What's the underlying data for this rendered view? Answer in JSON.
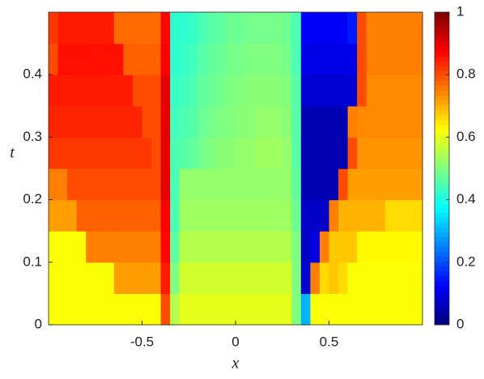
{
  "chart_data": {
    "type": "heatmap",
    "xlabel": "x",
    "ylabel": "t",
    "x": [
      -0.975,
      -0.925,
      -0.875,
      -0.825,
      -0.775,
      -0.725,
      -0.675,
      -0.625,
      -0.575,
      -0.525,
      -0.475,
      -0.425,
      -0.375,
      -0.325,
      -0.275,
      -0.225,
      -0.175,
      -0.125,
      -0.075,
      -0.025,
      0.025,
      0.075,
      0.125,
      0.175,
      0.225,
      0.275,
      0.325,
      0.375,
      0.425,
      0.475,
      0.525,
      0.575,
      0.625,
      0.675,
      0.725,
      0.775,
      0.825,
      0.875,
      0.925,
      0.975
    ],
    "y": [
      0.025,
      0.075,
      0.125,
      0.175,
      0.225,
      0.275,
      0.325,
      0.375,
      0.425,
      0.475
    ],
    "z": [
      [
        0.62,
        0.62,
        0.62,
        0.62,
        0.62,
        0.62,
        0.62,
        0.62,
        0.62,
        0.62,
        0.62,
        0.62,
        0.8,
        0.55,
        0.6,
        0.6,
        0.6,
        0.6,
        0.6,
        0.6,
        0.6,
        0.6,
        0.6,
        0.6,
        0.6,
        0.6,
        0.5,
        0.3,
        0.62,
        0.62,
        0.62,
        0.62,
        0.62,
        0.62,
        0.62,
        0.62,
        0.62,
        0.62,
        0.62,
        0.62
      ],
      [
        0.62,
        0.62,
        0.62,
        0.62,
        0.62,
        0.62,
        0.62,
        0.72,
        0.72,
        0.72,
        0.72,
        0.72,
        0.85,
        0.5,
        0.58,
        0.58,
        0.58,
        0.58,
        0.58,
        0.58,
        0.58,
        0.58,
        0.58,
        0.58,
        0.58,
        0.58,
        0.5,
        0.08,
        0.75,
        0.66,
        0.68,
        0.66,
        0.62,
        0.62,
        0.62,
        0.62,
        0.62,
        0.62,
        0.62,
        0.62
      ],
      [
        0.62,
        0.62,
        0.62,
        0.62,
        0.75,
        0.75,
        0.75,
        0.75,
        0.75,
        0.75,
        0.75,
        0.75,
        0.87,
        0.47,
        0.55,
        0.55,
        0.55,
        0.55,
        0.55,
        0.55,
        0.55,
        0.55,
        0.55,
        0.55,
        0.55,
        0.55,
        0.5,
        0.07,
        0.1,
        0.75,
        0.68,
        0.68,
        0.68,
        0.63,
        0.63,
        0.63,
        0.63,
        0.63,
        0.63,
        0.63
      ],
      [
        0.72,
        0.72,
        0.72,
        0.78,
        0.78,
        0.78,
        0.78,
        0.78,
        0.78,
        0.78,
        0.78,
        0.78,
        0.88,
        0.45,
        0.53,
        0.53,
        0.53,
        0.53,
        0.53,
        0.53,
        0.53,
        0.53,
        0.53,
        0.53,
        0.53,
        0.53,
        0.48,
        0.07,
        0.07,
        0.07,
        0.75,
        0.7,
        0.7,
        0.7,
        0.7,
        0.7,
        0.66,
        0.66,
        0.66,
        0.66
      ],
      [
        0.75,
        0.75,
        0.8,
        0.8,
        0.8,
        0.8,
        0.8,
        0.8,
        0.8,
        0.8,
        0.8,
        0.8,
        0.9,
        0.45,
        0.52,
        0.52,
        0.52,
        0.52,
        0.52,
        0.52,
        0.52,
        0.52,
        0.52,
        0.52,
        0.52,
        0.52,
        0.47,
        0.05,
        0.05,
        0.05,
        0.05,
        0.8,
        0.72,
        0.72,
        0.72,
        0.72,
        0.72,
        0.72,
        0.72,
        0.72
      ],
      [
        0.82,
        0.82,
        0.82,
        0.82,
        0.82,
        0.82,
        0.82,
        0.82,
        0.82,
        0.82,
        0.82,
        0.8,
        0.9,
        0.45,
        0.46,
        0.47,
        0.49,
        0.5,
        0.51,
        0.51,
        0.52,
        0.52,
        0.53,
        0.53,
        0.53,
        0.52,
        0.46,
        0.05,
        0.05,
        0.05,
        0.05,
        0.05,
        0.8,
        0.73,
        0.73,
        0.73,
        0.73,
        0.73,
        0.73,
        0.73
      ],
      [
        0.84,
        0.84,
        0.84,
        0.84,
        0.84,
        0.84,
        0.84,
        0.84,
        0.84,
        0.84,
        0.8,
        0.8,
        0.9,
        0.44,
        0.45,
        0.46,
        0.48,
        0.49,
        0.5,
        0.5,
        0.51,
        0.51,
        0.52,
        0.52,
        0.52,
        0.51,
        0.46,
        0.05,
        0.05,
        0.05,
        0.05,
        0.05,
        0.75,
        0.74,
        0.74,
        0.74,
        0.74,
        0.74,
        0.74,
        0.74
      ],
      [
        0.85,
        0.85,
        0.85,
        0.85,
        0.85,
        0.85,
        0.85,
        0.85,
        0.85,
        0.8,
        0.8,
        0.8,
        0.9,
        0.43,
        0.44,
        0.45,
        0.47,
        0.48,
        0.49,
        0.5,
        0.5,
        0.51,
        0.51,
        0.51,
        0.51,
        0.5,
        0.46,
        0.08,
        0.08,
        0.08,
        0.08,
        0.08,
        0.08,
        0.8,
        0.74,
        0.74,
        0.74,
        0.74,
        0.74,
        0.74
      ],
      [
        0.8,
        0.86,
        0.86,
        0.86,
        0.86,
        0.86,
        0.86,
        0.86,
        0.78,
        0.78,
        0.78,
        0.78,
        0.88,
        0.42,
        0.43,
        0.44,
        0.46,
        0.47,
        0.48,
        0.49,
        0.49,
        0.5,
        0.5,
        0.5,
        0.5,
        0.49,
        0.45,
        0.1,
        0.1,
        0.1,
        0.1,
        0.1,
        0.1,
        0.8,
        0.75,
        0.75,
        0.75,
        0.75,
        0.75,
        0.75
      ],
      [
        0.82,
        0.85,
        0.85,
        0.85,
        0.85,
        0.85,
        0.85,
        0.77,
        0.77,
        0.77,
        0.77,
        0.77,
        0.87,
        0.42,
        0.42,
        0.43,
        0.45,
        0.46,
        0.47,
        0.48,
        0.48,
        0.49,
        0.49,
        0.49,
        0.49,
        0.48,
        0.45,
        0.12,
        0.12,
        0.12,
        0.12,
        0.12,
        0.15,
        0.8,
        0.75,
        0.75,
        0.75,
        0.75,
        0.75,
        0.75
      ]
    ],
    "xlim": [
      -1,
      1
    ],
    "xticks": [
      -0.5,
      0,
      0.5
    ],
    "ylim": [
      0,
      0.5
    ],
    "yticks": [
      0,
      0.1,
      0.2,
      0.3,
      0.4
    ],
    "colormap": "jet",
    "clim": [
      0,
      1
    ],
    "cticks": [
      0,
      0.2,
      0.4,
      0.6,
      0.8,
      1
    ]
  }
}
